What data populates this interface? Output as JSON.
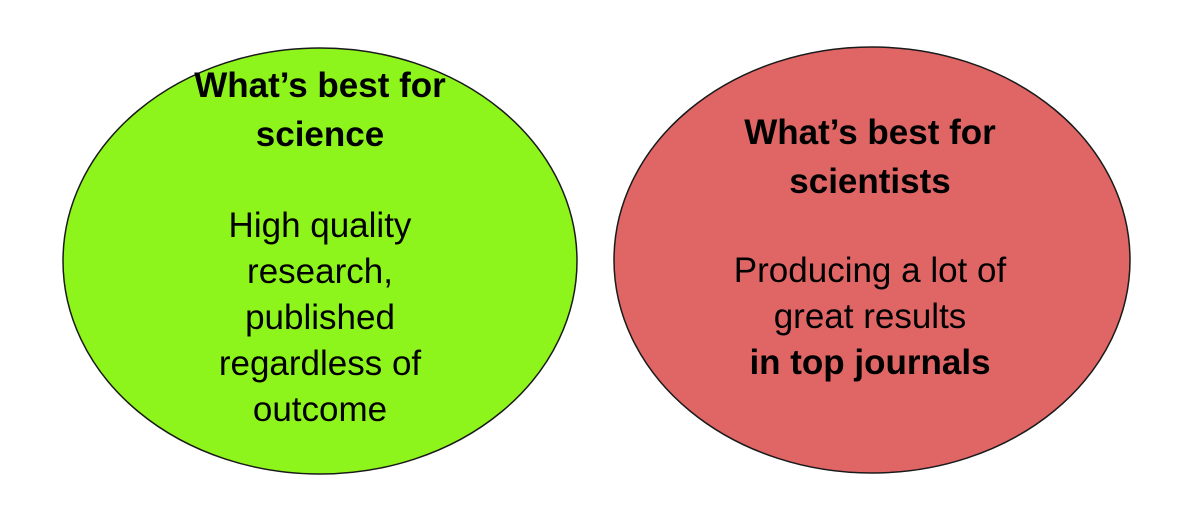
{
  "colors": {
    "left_circle_fill": "#8ef51c",
    "right_circle_fill": "#e06666",
    "outline": "#1a1a1a",
    "text": "#000000"
  },
  "left_circle": {
    "heading_lines": [
      "What’s best for",
      "science"
    ],
    "body_lines": [
      "High quality",
      "research,",
      "published",
      "regardless of",
      "outcome"
    ]
  },
  "right_circle": {
    "heading_lines": [
      "What’s best for",
      "scientists"
    ],
    "body_lines": [
      "Producing a lot of",
      "great results"
    ],
    "body_bold_line": "in top journals"
  }
}
